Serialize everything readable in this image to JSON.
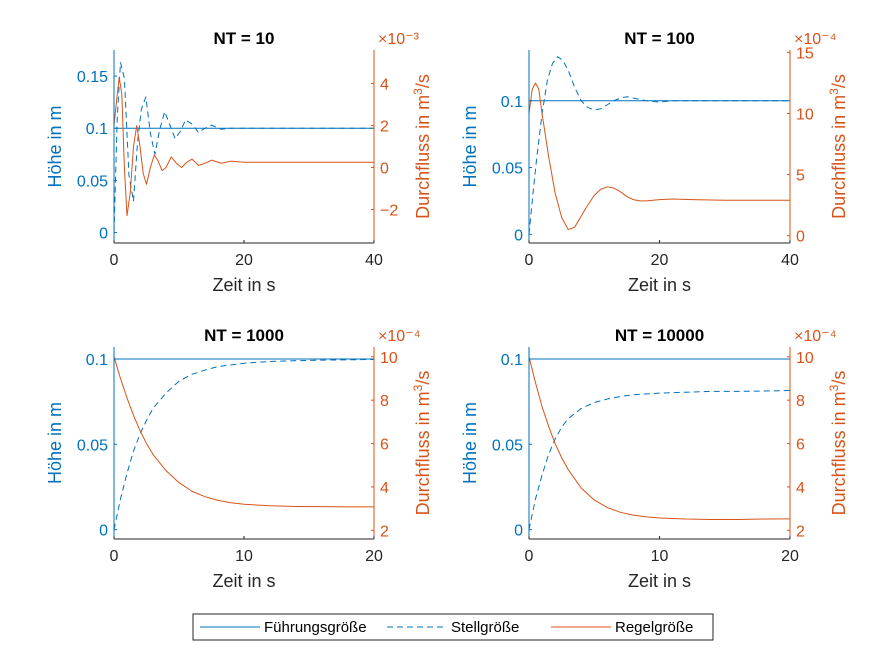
{
  "colors": {
    "blue": "#0072BD",
    "orange": "#D95319",
    "axis": "#262626"
  },
  "legend": {
    "placement": "bottom-center",
    "entries": [
      {
        "label": "Führungsgröße",
        "style": "solid",
        "color": "#0072BD"
      },
      {
        "label": "Stellgröße",
        "style": "dashed",
        "color": "#0072BD"
      },
      {
        "label": "Regelgröße",
        "style": "solid",
        "color": "#D95319"
      }
    ]
  },
  "chart_data": [
    {
      "type": "line",
      "title": "NT = 10",
      "xlabel": "Zeit in s",
      "ylabel": "Höhe in m",
      "ylabel_right": "Durchfluss in m³/s",
      "ylabel_right_base": "Durchfluss in m",
      "ylabel_right_sup": "3",
      "ylabel_right_tail": "/s",
      "right_exponent": "×10⁻³",
      "xlim": [
        0,
        40
      ],
      "ylim": [
        -0.01,
        0.175
      ],
      "ylim_right": [
        -3.6,
        5.6
      ],
      "xticks": [
        0,
        20,
        40
      ],
      "yticks": [
        0,
        0.05,
        0.1,
        0.15
      ],
      "yticks_right": [
        -2,
        0,
        2,
        4
      ],
      "series": [
        {
          "name": "Führungsgröße",
          "axis": "left",
          "style": "solid",
          "x": [
            0,
            40
          ],
          "y": [
            0.1,
            0.1
          ]
        },
        {
          "name": "Stellgröße",
          "axis": "left",
          "style": "dashed",
          "x": [
            0,
            0.5,
            1.0,
            1.6,
            2.3,
            3.0,
            3.6,
            4.2,
            4.9,
            5.6,
            6.3,
            7.0,
            7.8,
            8.6,
            9.4,
            10.2,
            11.0,
            12.0,
            13.0,
            14.0,
            15.0,
            16.5,
            18.0,
            20.0,
            25.0,
            30.0,
            40.0
          ],
          "y": [
            0.0,
            0.11,
            0.163,
            0.148,
            0.055,
            0.03,
            0.085,
            0.118,
            0.13,
            0.095,
            0.075,
            0.098,
            0.116,
            0.103,
            0.09,
            0.097,
            0.108,
            0.104,
            0.096,
            0.1,
            0.103,
            0.099,
            0.1,
            0.1,
            0.1,
            0.1,
            0.1
          ]
        },
        {
          "name": "Regelgröße",
          "axis": "right",
          "style": "solid",
          "x": [
            0,
            0.4,
            0.8,
            1.2,
            1.6,
            2.0,
            2.5,
            3.0,
            3.5,
            4.0,
            4.5,
            5.0,
            5.6,
            6.2,
            6.8,
            7.4,
            8.0,
            8.8,
            9.6,
            10.4,
            11.2,
            12.0,
            13.0,
            14.0,
            15.0,
            16.5,
            18.0,
            20.0,
            25.0,
            30.0,
            40.0
          ],
          "y": [
            2.0,
            3.2,
            4.3,
            3.5,
            0.0,
            -2.3,
            -1.2,
            1.0,
            2.0,
            1.0,
            -0.3,
            -0.8,
            0.0,
            0.6,
            0.3,
            -0.15,
            0.0,
            0.5,
            0.2,
            0.0,
            0.25,
            0.4,
            0.1,
            0.2,
            0.35,
            0.2,
            0.3,
            0.25,
            0.25,
            0.25,
            0.25
          ]
        }
      ]
    },
    {
      "type": "line",
      "title": "NT = 100",
      "xlabel": "Zeit in s",
      "ylabel": "Höhe in m",
      "ylabel_right": "Durchfluss in m³/s",
      "ylabel_right_base": "Durchfluss in m",
      "ylabel_right_sup": "3",
      "ylabel_right_tail": "/s",
      "right_exponent": "×10⁻⁴",
      "xlim": [
        0,
        40
      ],
      "ylim": [
        -0.0065,
        0.138
      ],
      "ylim_right": [
        -0.6,
        15.2
      ],
      "xticks": [
        0,
        20,
        40
      ],
      "yticks": [
        0,
        0.05,
        0.1
      ],
      "yticks_right": [
        0,
        5,
        10,
        15
      ],
      "series": [
        {
          "name": "Führungsgröße",
          "axis": "left",
          "style": "solid",
          "x": [
            0,
            40
          ],
          "y": [
            0.1,
            0.1
          ]
        },
        {
          "name": "Stellgröße",
          "axis": "left",
          "style": "dashed",
          "x": [
            0,
            0.6,
            1.2,
            2.0,
            2.8,
            3.6,
            4.4,
            5.2,
            6.0,
            7.0,
            8.0,
            9.0,
            10.0,
            11.0,
            12.0,
            13.0,
            14.0,
            15.0,
            16.0,
            17.0,
            18.0,
            20.0,
            22.0,
            25.0,
            30.0,
            40.0
          ],
          "y": [
            0.0,
            0.03,
            0.058,
            0.09,
            0.115,
            0.128,
            0.133,
            0.13,
            0.123,
            0.11,
            0.1,
            0.095,
            0.093,
            0.094,
            0.097,
            0.1,
            0.102,
            0.103,
            0.102,
            0.101,
            0.1,
            0.099,
            0.1,
            0.1,
            0.1,
            0.1
          ]
        },
        {
          "name": "Regelgröße",
          "axis": "right",
          "style": "solid",
          "x": [
            0,
            0.5,
            1.0,
            1.5,
            2.0,
            3.0,
            4.0,
            5.0,
            6.0,
            7.0,
            8.0,
            9.0,
            10.0,
            11.0,
            12.0,
            13.0,
            14.0,
            15.0,
            16.0,
            17.0,
            18.0,
            20.0,
            22.0,
            25.0,
            30.0,
            40.0
          ],
          "y": [
            10.0,
            12.0,
            12.5,
            12.0,
            10.0,
            6.5,
            3.5,
            1.5,
            0.5,
            0.7,
            1.6,
            2.5,
            3.3,
            3.8,
            4.0,
            3.9,
            3.6,
            3.2,
            2.95,
            2.85,
            2.85,
            2.95,
            3.0,
            2.95,
            2.9,
            2.9
          ]
        }
      ]
    },
    {
      "type": "line",
      "title": "NT = 1000",
      "xlabel": "Zeit in s",
      "ylabel": "Höhe in m",
      "ylabel_right": "Durchfluss in m³/s",
      "ylabel_right_base": "Durchfluss in m",
      "ylabel_right_sup": "3",
      "ylabel_right_tail": "/s",
      "right_exponent": "×10⁻⁴",
      "xlim": [
        0,
        20
      ],
      "ylim": [
        -0.0055,
        0.107
      ],
      "ylim_right": [
        1.6,
        10.45
      ],
      "xticks": [
        0,
        10,
        20
      ],
      "yticks": [
        0,
        0.05,
        0.1
      ],
      "yticks_right": [
        2,
        4,
        6,
        8,
        10
      ],
      "series": [
        {
          "name": "Führungsgröße",
          "axis": "left",
          "style": "solid",
          "x": [
            0,
            20
          ],
          "y": [
            0.1,
            0.1
          ]
        },
        {
          "name": "Stellgröße",
          "axis": "left",
          "style": "dashed",
          "x": [
            0,
            0.5,
            1.0,
            1.5,
            2.0,
            2.5,
            3.0,
            4.0,
            5.0,
            6.0,
            7.0,
            8.0,
            9.0,
            10.0,
            12.0,
            14.0,
            16.0,
            18.0,
            20.0
          ],
          "y": [
            0.0,
            0.018,
            0.033,
            0.046,
            0.056,
            0.064,
            0.071,
            0.08,
            0.087,
            0.091,
            0.0935,
            0.0955,
            0.0965,
            0.0975,
            0.0985,
            0.099,
            0.0993,
            0.0995,
            0.0997
          ]
        },
        {
          "name": "Regelgröße",
          "axis": "right",
          "style": "solid",
          "x": [
            0,
            0.5,
            1.0,
            1.5,
            2.0,
            2.5,
            3.0,
            4.0,
            5.0,
            6.0,
            7.0,
            8.0,
            9.0,
            10.0,
            12.0,
            14.0,
            16.0,
            18.0,
            20.0
          ],
          "y": [
            10.0,
            9.0,
            8.1,
            7.3,
            6.6,
            6.0,
            5.5,
            4.75,
            4.2,
            3.8,
            3.55,
            3.38,
            3.27,
            3.2,
            3.13,
            3.1,
            3.09,
            3.08,
            3.08
          ]
        }
      ]
    },
    {
      "type": "line",
      "title": "NT = 10000",
      "xlabel": "Zeit in s",
      "ylabel": "Höhe in m",
      "ylabel_right": "Durchfluss in m³/s",
      "ylabel_right_base": "Durchfluss in m",
      "ylabel_right_sup": "3",
      "ylabel_right_tail": "/s",
      "right_exponent": "×10⁻⁴",
      "xlim": [
        0,
        20
      ],
      "ylim": [
        -0.0055,
        0.107
      ],
      "ylim_right": [
        1.6,
        10.45
      ],
      "xticks": [
        0,
        10,
        20
      ],
      "yticks": [
        0,
        0.05,
        0.1
      ],
      "yticks_right": [
        2,
        4,
        6,
        8,
        10
      ],
      "series": [
        {
          "name": "Führungsgröße",
          "axis": "left",
          "style": "solid",
          "x": [
            0,
            20
          ],
          "y": [
            0.1,
            0.1
          ]
        },
        {
          "name": "Stellgröße",
          "axis": "left",
          "style": "dashed",
          "x": [
            0,
            0.5,
            1.0,
            1.5,
            2.0,
            2.5,
            3.0,
            4.0,
            5.0,
            6.0,
            7.0,
            8.0,
            9.0,
            10.0,
            12.0,
            14.0,
            16.0,
            18.0,
            20.0
          ],
          "y": [
            0.0,
            0.018,
            0.032,
            0.044,
            0.053,
            0.06,
            0.065,
            0.071,
            0.0745,
            0.0765,
            0.078,
            0.079,
            0.0795,
            0.08,
            0.0805,
            0.081,
            0.081,
            0.0812,
            0.0815
          ]
        },
        {
          "name": "Regelgröße",
          "axis": "right",
          "style": "solid",
          "x": [
            0,
            0.5,
            1.0,
            1.5,
            2.0,
            2.5,
            3.0,
            4.0,
            5.0,
            6.0,
            7.0,
            8.0,
            9.0,
            10.0,
            12.0,
            14.0,
            16.0,
            18.0,
            20.0
          ],
          "y": [
            10.0,
            8.8,
            7.7,
            6.8,
            6.0,
            5.35,
            4.8,
            3.95,
            3.4,
            3.05,
            2.83,
            2.7,
            2.62,
            2.57,
            2.52,
            2.5,
            2.5,
            2.52,
            2.53
          ]
        }
      ]
    }
  ]
}
